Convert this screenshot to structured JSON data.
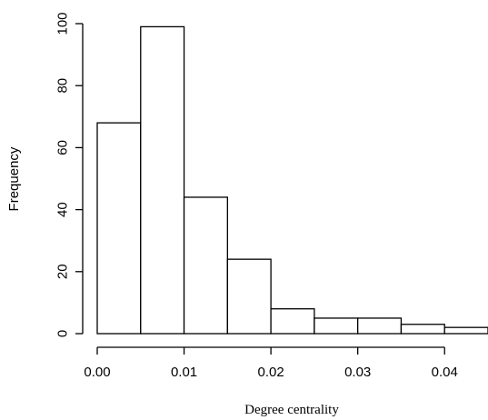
{
  "chart_data": {
    "type": "bar",
    "subtype": "histogram",
    "title": "",
    "xlabel": "Degree centrality",
    "ylabel": "Frequency",
    "xlim": [
      0.0,
      0.045
    ],
    "ylim": [
      0,
      100
    ],
    "bin_edges": [
      0.0,
      0.005,
      0.01,
      0.015,
      0.02,
      0.025,
      0.03,
      0.035,
      0.04,
      0.045
    ],
    "values": [
      68,
      99,
      44,
      24,
      8,
      5,
      5,
      3,
      2
    ],
    "x_ticks": [
      0.0,
      0.01,
      0.02,
      0.03,
      0.04
    ],
    "x_tick_labels": [
      "0.00",
      "0.01",
      "0.02",
      "0.03",
      "0.04"
    ],
    "y_ticks": [
      0,
      20,
      40,
      60,
      80,
      100
    ],
    "y_tick_labels": [
      "0",
      "20",
      "40",
      "60",
      "80",
      "100"
    ],
    "grid": false,
    "bar_fill": "#ffffff",
    "bar_stroke": "#000000"
  }
}
